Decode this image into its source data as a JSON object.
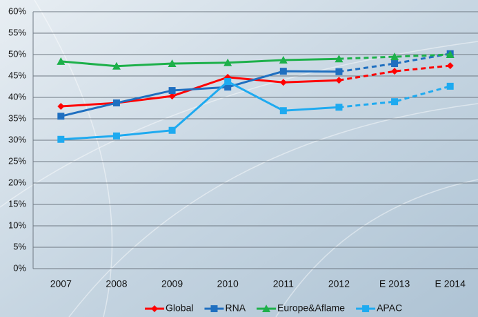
{
  "chart_data": {
    "type": "line",
    "categories": [
      "2007",
      "2008",
      "2009",
      "2010",
      "2011",
      "2012",
      "E 2013",
      "E 2014"
    ],
    "dashed_from": "2012",
    "series": [
      {
        "name": "Global",
        "color": "#ff0000",
        "marker": "diamond",
        "values": [
          37.9,
          38.7,
          40.3,
          44.7,
          43.5,
          44.0,
          46.1,
          47.4
        ]
      },
      {
        "name": "RNA",
        "color": "#1f6fc0",
        "marker": "square",
        "values": [
          35.6,
          38.7,
          41.6,
          42.4,
          46.1,
          46.0,
          47.9,
          50.2
        ]
      },
      {
        "name": "Europe&Aflame",
        "color": "#1db04a",
        "marker": "triangle",
        "values": [
          48.4,
          47.3,
          47.9,
          48.1,
          48.7,
          49.0,
          49.5,
          50.0
        ]
      },
      {
        "name": "APAC",
        "color": "#1eaaf0",
        "marker": "square",
        "values": [
          30.2,
          31.0,
          32.3,
          43.7,
          36.9,
          37.7,
          39.0,
          42.6
        ]
      }
    ],
    "ylim": [
      0,
      60
    ],
    "yticks": [
      {
        "value": 0,
        "label": "0%"
      },
      {
        "value": 5,
        "label": "5%"
      },
      {
        "value": 10,
        "label": "10%"
      },
      {
        "value": 15,
        "label": "15%"
      },
      {
        "value": 20,
        "label": "20%"
      },
      {
        "value": 25,
        "label": "25%"
      },
      {
        "value": 30,
        "label": "30%"
      },
      {
        "value": 35,
        "label": "35%"
      },
      {
        "value": 40,
        "label": "40%"
      },
      {
        "value": 45,
        "label": "45%"
      },
      {
        "value": 50,
        "label": "50%"
      },
      {
        "value": 55,
        "label": "55%"
      },
      {
        "value": 60,
        "label": "60%"
      }
    ],
    "grid": true,
    "legend": "bottom"
  }
}
